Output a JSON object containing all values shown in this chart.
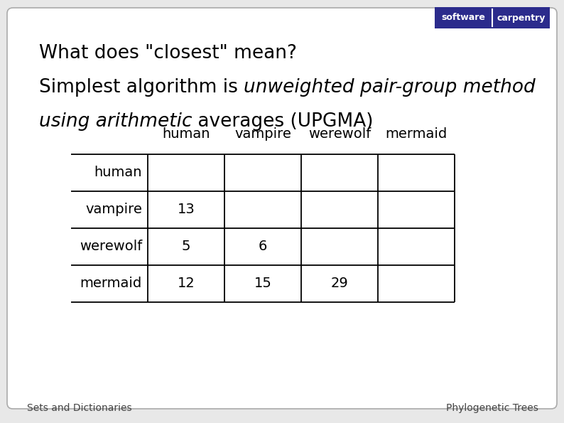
{
  "bg_color": "#e8e8e8",
  "slide_bg": "#ffffff",
  "title_line1": "What does \"closest\" mean?",
  "title_line2_normal": "Simplest algorithm is ",
  "title_line2_italic": "unweighted pair-group method",
  "title_line3_italic": "using arithmetic",
  "title_line3_normal": " averages (UPGMA)",
  "col_headers": [
    "human",
    "vampire",
    "werewolf",
    "mermaid"
  ],
  "row_headers": [
    "human",
    "vampire",
    "werewolf",
    "mermaid"
  ],
  "table_data": [
    [
      "",
      "",
      "",
      ""
    ],
    [
      "13",
      "",
      "",
      ""
    ],
    [
      "5",
      "6",
      "",
      ""
    ],
    [
      "12",
      "15",
      "29",
      ""
    ]
  ],
  "footer_left": "Sets and Dictionaries",
  "footer_right": "Phylogenetic Trees",
  "text_color": "#000000",
  "footer_color": "#444444",
  "logo_color": "#2b2b8c",
  "title_fontsize": 19,
  "table_fontsize": 14,
  "footer_fontsize": 10
}
